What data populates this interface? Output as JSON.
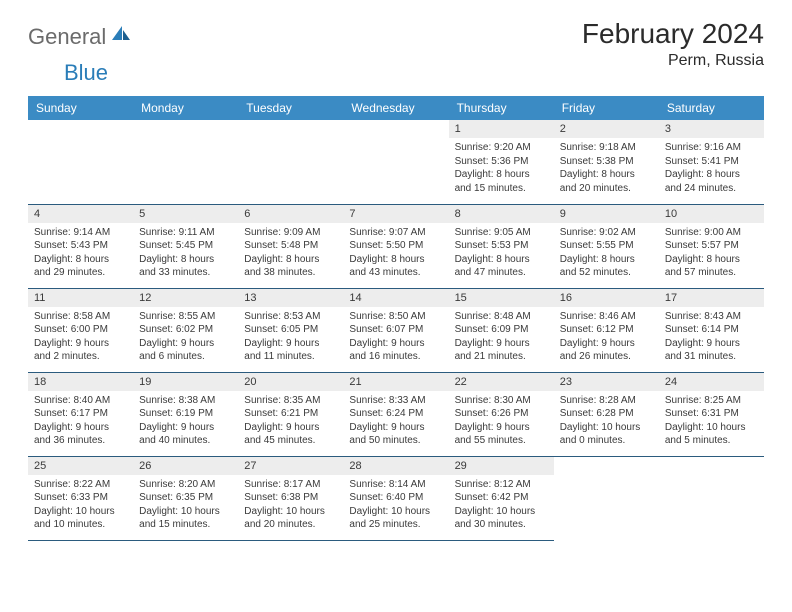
{
  "logo": {
    "text1": "General",
    "text2": "Blue"
  },
  "title": "February 2024",
  "location": "Perm, Russia",
  "header_bg": "#3b8bc4",
  "daynum_bg": "#ededed",
  "rule_color": "#2b5b7e",
  "weekdays": [
    "Sunday",
    "Monday",
    "Tuesday",
    "Wednesday",
    "Thursday",
    "Friday",
    "Saturday"
  ],
  "weeks": [
    [
      null,
      null,
      null,
      null,
      {
        "n": "1",
        "sr": "9:20 AM",
        "ss": "5:36 PM",
        "dl": "8 hours and 15 minutes."
      },
      {
        "n": "2",
        "sr": "9:18 AM",
        "ss": "5:38 PM",
        "dl": "8 hours and 20 minutes."
      },
      {
        "n": "3",
        "sr": "9:16 AM",
        "ss": "5:41 PM",
        "dl": "8 hours and 24 minutes."
      }
    ],
    [
      {
        "n": "4",
        "sr": "9:14 AM",
        "ss": "5:43 PM",
        "dl": "8 hours and 29 minutes."
      },
      {
        "n": "5",
        "sr": "9:11 AM",
        "ss": "5:45 PM",
        "dl": "8 hours and 33 minutes."
      },
      {
        "n": "6",
        "sr": "9:09 AM",
        "ss": "5:48 PM",
        "dl": "8 hours and 38 minutes."
      },
      {
        "n": "7",
        "sr": "9:07 AM",
        "ss": "5:50 PM",
        "dl": "8 hours and 43 minutes."
      },
      {
        "n": "8",
        "sr": "9:05 AM",
        "ss": "5:53 PM",
        "dl": "8 hours and 47 minutes."
      },
      {
        "n": "9",
        "sr": "9:02 AM",
        "ss": "5:55 PM",
        "dl": "8 hours and 52 minutes."
      },
      {
        "n": "10",
        "sr": "9:00 AM",
        "ss": "5:57 PM",
        "dl": "8 hours and 57 minutes."
      }
    ],
    [
      {
        "n": "11",
        "sr": "8:58 AM",
        "ss": "6:00 PM",
        "dl": "9 hours and 2 minutes."
      },
      {
        "n": "12",
        "sr": "8:55 AM",
        "ss": "6:02 PM",
        "dl": "9 hours and 6 minutes."
      },
      {
        "n": "13",
        "sr": "8:53 AM",
        "ss": "6:05 PM",
        "dl": "9 hours and 11 minutes."
      },
      {
        "n": "14",
        "sr": "8:50 AM",
        "ss": "6:07 PM",
        "dl": "9 hours and 16 minutes."
      },
      {
        "n": "15",
        "sr": "8:48 AM",
        "ss": "6:09 PM",
        "dl": "9 hours and 21 minutes."
      },
      {
        "n": "16",
        "sr": "8:46 AM",
        "ss": "6:12 PM",
        "dl": "9 hours and 26 minutes."
      },
      {
        "n": "17",
        "sr": "8:43 AM",
        "ss": "6:14 PM",
        "dl": "9 hours and 31 minutes."
      }
    ],
    [
      {
        "n": "18",
        "sr": "8:40 AM",
        "ss": "6:17 PM",
        "dl": "9 hours and 36 minutes."
      },
      {
        "n": "19",
        "sr": "8:38 AM",
        "ss": "6:19 PM",
        "dl": "9 hours and 40 minutes."
      },
      {
        "n": "20",
        "sr": "8:35 AM",
        "ss": "6:21 PM",
        "dl": "9 hours and 45 minutes."
      },
      {
        "n": "21",
        "sr": "8:33 AM",
        "ss": "6:24 PM",
        "dl": "9 hours and 50 minutes."
      },
      {
        "n": "22",
        "sr": "8:30 AM",
        "ss": "6:26 PM",
        "dl": "9 hours and 55 minutes."
      },
      {
        "n": "23",
        "sr": "8:28 AM",
        "ss": "6:28 PM",
        "dl": "10 hours and 0 minutes."
      },
      {
        "n": "24",
        "sr": "8:25 AM",
        "ss": "6:31 PM",
        "dl": "10 hours and 5 minutes."
      }
    ],
    [
      {
        "n": "25",
        "sr": "8:22 AM",
        "ss": "6:33 PM",
        "dl": "10 hours and 10 minutes."
      },
      {
        "n": "26",
        "sr": "8:20 AM",
        "ss": "6:35 PM",
        "dl": "10 hours and 15 minutes."
      },
      {
        "n": "27",
        "sr": "8:17 AM",
        "ss": "6:38 PM",
        "dl": "10 hours and 20 minutes."
      },
      {
        "n": "28",
        "sr": "8:14 AM",
        "ss": "6:40 PM",
        "dl": "10 hours and 25 minutes."
      },
      {
        "n": "29",
        "sr": "8:12 AM",
        "ss": "6:42 PM",
        "dl": "10 hours and 30 minutes."
      },
      null,
      null
    ]
  ],
  "labels": {
    "sunrise": "Sunrise: ",
    "sunset": "Sunset: ",
    "daylight": "Daylight: "
  }
}
